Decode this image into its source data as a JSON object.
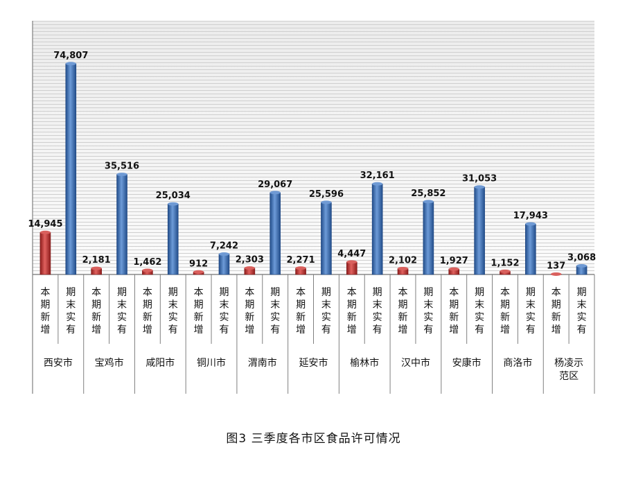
{
  "caption": "图3   三季度各市区食品许可情况",
  "chart_data": {
    "type": "bar",
    "title": "图3   三季度各市区食品许可情况",
    "categories": [
      "西安市",
      "宝鸡市",
      "咸阳市",
      "铜川市",
      "渭南市",
      "延安市",
      "榆林市",
      "汉中市",
      "安康市",
      "商洛市",
      "杨凌示范区"
    ],
    "sublabels": [
      "本期新增",
      "期末实有"
    ],
    "series": [
      {
        "name": "本期新增",
        "color": "#c0302e",
        "values": [
          14945,
          2181,
          1462,
          912,
          2303,
          2271,
          4447,
          2102,
          1927,
          1152,
          137
        ]
      },
      {
        "name": "期末实有",
        "color": "#3e6fb5",
        "values": [
          74807,
          35516,
          25034,
          7242,
          29067,
          25596,
          32161,
          25852,
          31053,
          17943,
          3068
        ]
      }
    ],
    "value_labels": {
      "本期新增": [
        "14,945",
        "2,181",
        "1,462",
        "912",
        "2,303",
        "2,271",
        "4,447",
        "2,102",
        "1,927",
        "1,152",
        "137"
      ],
      "期末实有": [
        "74,807",
        "35,516",
        "25,034",
        "7,242",
        "29,067",
        "25,596",
        "32,161",
        "25,852",
        "31,053",
        "17,943",
        "3,068"
      ]
    },
    "ylim": [
      0,
      90000
    ],
    "grid": true,
    "legend": "none"
  }
}
